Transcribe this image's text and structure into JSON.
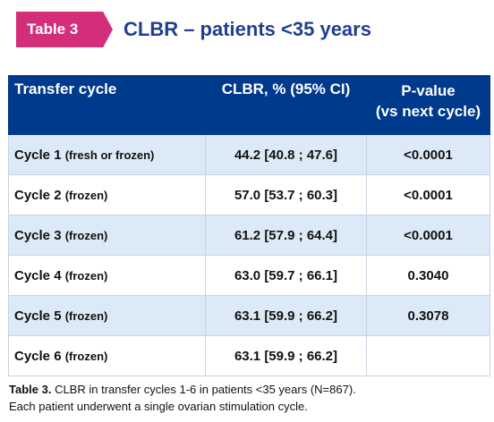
{
  "header": {
    "badge": "Table 3",
    "title": "CLBR – patients <35 years",
    "badge_color": "#d42e7b",
    "title_color": "#1f3f8f"
  },
  "table": {
    "header_color": "#003a8c",
    "row_shade_color": "#dbeaf6",
    "columns": [
      "Transfer cycle",
      "CLBR, % (95% CI)",
      "P-value",
      "(vs next cycle)"
    ],
    "rows": [
      {
        "cycle": "Cycle 1",
        "type": "(fresh or frozen)",
        "clbr": "44.2 [40.8 ; 47.6]",
        "p": "<0.0001"
      },
      {
        "cycle": "Cycle 2",
        "type": "(frozen)",
        "clbr": "57.0 [53.7 ; 60.3]",
        "p": "<0.0001"
      },
      {
        "cycle": "Cycle 3",
        "type": "(frozen)",
        "clbr": "61.2 [57.9 ; 64.4]",
        "p": "<0.0001"
      },
      {
        "cycle": "Cycle 4",
        "type": "(frozen)",
        "clbr": "63.0 [59.7 ; 66.1]",
        "p": "0.3040"
      },
      {
        "cycle": "Cycle 5",
        "type": "(frozen)",
        "clbr": "63.1 [59.9 ; 66.2]",
        "p": "0.3078"
      },
      {
        "cycle": "Cycle 6",
        "type": "(frozen)",
        "clbr": "63.1 [59.9 ; 66.2]",
        "p": ""
      }
    ]
  },
  "caption": {
    "label": "Table 3.",
    "line1": " CLBR in transfer cycles 1-6 in patients <35 years (N=867).",
    "line2": "Each patient underwent a single ovarian stimulation cycle."
  }
}
